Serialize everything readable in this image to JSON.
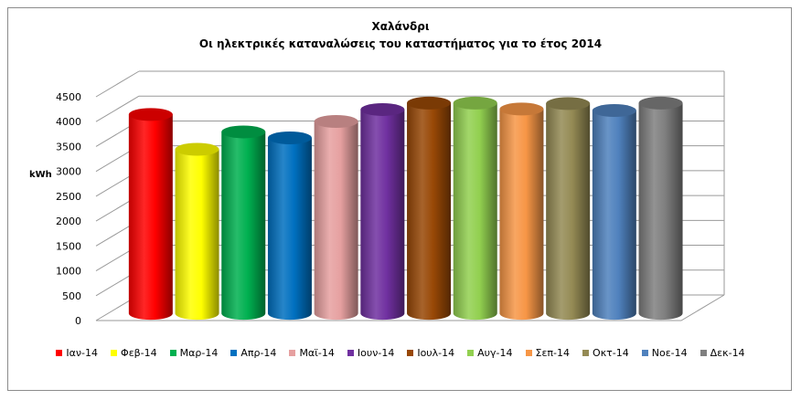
{
  "chart_data": {
    "type": "bar",
    "title": "Χαλάνδρι",
    "subtitle": "Οι ηλεκτρικές καταναλώσεις του καταστήματος για το έτος 2014",
    "ylabel": "kWh",
    "xlabel": "",
    "ylim": [
      0,
      4500
    ],
    "yticks": [
      "0",
      "500",
      "1000",
      "1500",
      "2000",
      "2500",
      "3000",
      "3500",
      "4000",
      "4500"
    ],
    "grid": true,
    "legend_position": "bottom",
    "style": "3d-cylinder",
    "series": [
      {
        "name": "Ιαν-14",
        "value": 4000,
        "color": "#ff0000"
      },
      {
        "name": "Φεβ-14",
        "value": 3300,
        "color": "#ffff00"
      },
      {
        "name": "Μαρ-14",
        "value": 3650,
        "color": "#00b050"
      },
      {
        "name": "Απρ-14",
        "value": 3530,
        "color": "#0070c0"
      },
      {
        "name": "Μαϊ-14",
        "value": 3860,
        "color": "#e6a0a0"
      },
      {
        "name": "Ιουν-14",
        "value": 4100,
        "color": "#7030a0"
      },
      {
        "name": "Ιουλ-14",
        "value": 4230,
        "color": "#984806"
      },
      {
        "name": "Αυγ-14",
        "value": 4230,
        "color": "#92d050"
      },
      {
        "name": "Σεπ-14",
        "value": 4110,
        "color": "#f79646"
      },
      {
        "name": "Οκτ-14",
        "value": 4220,
        "color": "#948a54"
      },
      {
        "name": "Νοε-14",
        "value": 4080,
        "color": "#4f81bd"
      },
      {
        "name": "Δεκ-14",
        "value": 4230,
        "color": "#7f7f7f"
      }
    ]
  }
}
